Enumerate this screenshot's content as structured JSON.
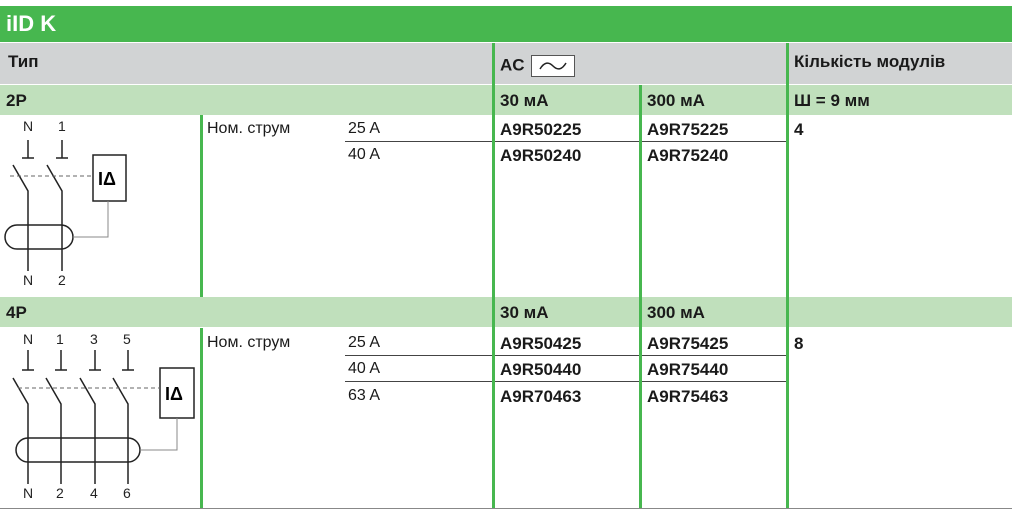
{
  "title": "iID K",
  "header": {
    "type": "Тип",
    "ac": "AC",
    "ac_symbol": "sine-wave-icon",
    "modules": "Кількість модулів"
  },
  "colors": {
    "green": "#47b74f",
    "light_green": "#c0e0bc",
    "grey": "#d1d3d4"
  },
  "sections": [
    {
      "label": "2P",
      "sens1": "30 мА",
      "sens2": "300 мА",
      "width_note": "Ш = 9 мм",
      "rated_label": "Ном. струм",
      "terminals_top": [
        "N",
        "1"
      ],
      "terminals_bottom": [
        "N",
        "2"
      ],
      "relay": "IΔ",
      "rows": [
        {
          "current": "25 A",
          "ref30": "A9R50225",
          "ref300": "A9R75225"
        },
        {
          "current": "40 A",
          "ref30": "A9R50240",
          "ref300": "A9R75240"
        }
      ],
      "modules": "4"
    },
    {
      "label": "4P",
      "sens1": "30 мА",
      "sens2": "300 мА",
      "width_note": "",
      "rated_label": "Ном. струм",
      "terminals_top": [
        "N",
        "1",
        "3",
        "5"
      ],
      "terminals_bottom": [
        "N",
        "2",
        "4",
        "6"
      ],
      "relay": "IΔ",
      "rows": [
        {
          "current": "25 A",
          "ref30": "A9R50425",
          "ref300": "A9R75425"
        },
        {
          "current": "40 A",
          "ref30": "A9R50440",
          "ref300": "A9R75440"
        },
        {
          "current": "63 A",
          "ref30": "A9R70463",
          "ref300": "A9R75463"
        }
      ],
      "modules": "8"
    }
  ]
}
